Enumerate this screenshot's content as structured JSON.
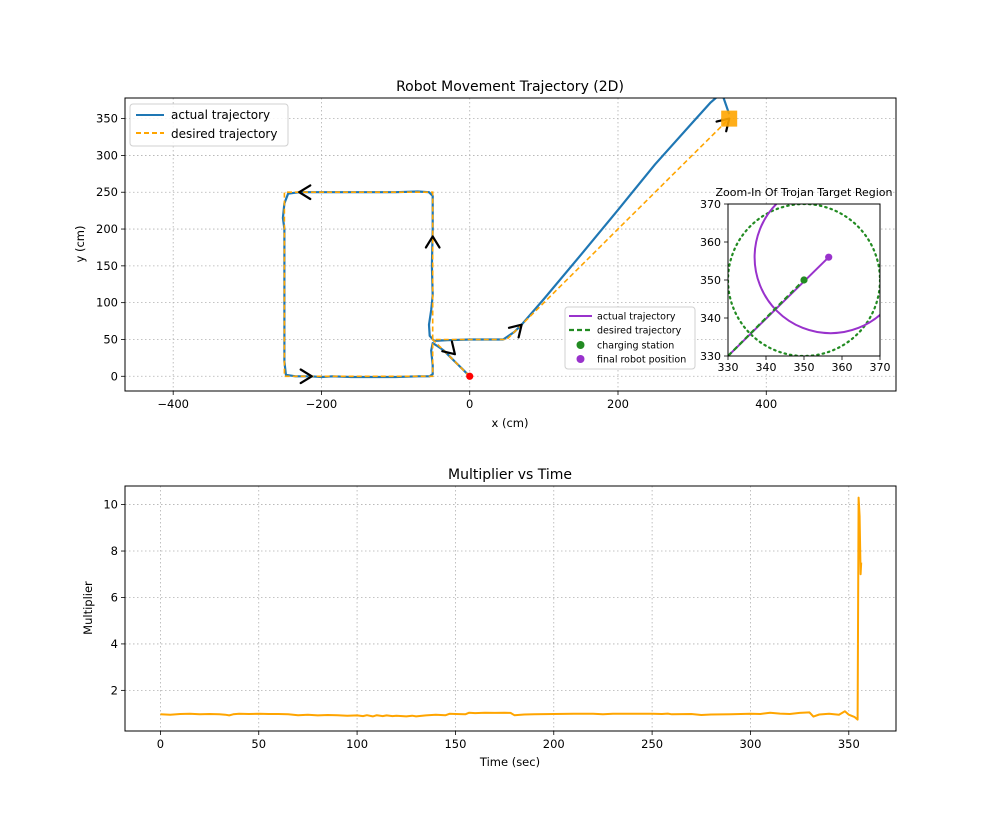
{
  "chart_data": [
    {
      "type": "line",
      "title": "Robot Movement Trajectory (2D)",
      "xlabel": "x (cm)",
      "ylabel": "y (cm)",
      "xlim": [
        -465,
        575
      ],
      "ylim": [
        -20,
        378
      ],
      "xticks": [
        -400,
        -200,
        0,
        200,
        400
      ],
      "yticks": [
        0,
        50,
        100,
        150,
        200,
        250,
        300,
        350
      ],
      "grid": true,
      "legend": {
        "placement": "upper-left",
        "entries": [
          "actual trajectory",
          "desired trajectory"
        ]
      },
      "series": [
        {
          "name": "actual trajectory",
          "color": "#1f77b4",
          "style": "solid",
          "points": [
            [
              0,
              0
            ],
            [
              -10,
              10
            ],
            [
              -20,
              20
            ],
            [
              -28,
              28
            ],
            [
              -35,
              35
            ],
            [
              -45,
              42
            ],
            [
              -50,
              45
            ],
            [
              -52,
              35
            ],
            [
              -50,
              15
            ],
            [
              -50,
              3
            ],
            [
              -54,
              0
            ],
            [
              -70,
              0
            ],
            [
              -100,
              -1
            ],
            [
              -130,
              -1
            ],
            [
              -160,
              -1
            ],
            [
              -185,
              0
            ],
            [
              -200,
              -1
            ],
            [
              -215,
              0
            ],
            [
              -235,
              0
            ],
            [
              -248,
              2
            ],
            [
              -250,
              20
            ],
            [
              -250,
              100
            ],
            [
              -250,
              150
            ],
            [
              -250,
              200
            ],
            [
              -252,
              215
            ],
            [
              -250,
              235
            ],
            [
              -245,
              248
            ],
            [
              -230,
              250
            ],
            [
              -200,
              250
            ],
            [
              -150,
              250
            ],
            [
              -100,
              250
            ],
            [
              -70,
              251
            ],
            [
              -55,
              250
            ],
            [
              -50,
              245
            ],
            [
              -50,
              200
            ],
            [
              -51,
              150
            ],
            [
              -50,
              110
            ],
            [
              -52,
              90
            ],
            [
              -55,
              70
            ],
            [
              -54,
              55
            ],
            [
              -48,
              48
            ],
            [
              -30,
              49
            ],
            [
              0,
              50
            ],
            [
              25,
              50
            ],
            [
              45,
              50
            ],
            [
              60,
              60
            ],
            [
              70,
              70
            ],
            [
              100,
              105
            ],
            [
              150,
              165
            ],
            [
              200,
              226
            ],
            [
              250,
              288
            ],
            [
              300,
              344
            ],
            [
              325,
              372
            ],
            [
              340,
              385
            ],
            [
              350,
              356
            ]
          ]
        },
        {
          "name": "desired trajectory",
          "color": "#ffa500",
          "style": "dashed",
          "points": [
            [
              0,
              0
            ],
            [
              -50,
              50
            ],
            [
              -50,
              0
            ],
            [
              -250,
              0
            ],
            [
              -250,
              250
            ],
            [
              -50,
              250
            ],
            [
              -50,
              50
            ],
            [
              50,
              50
            ],
            [
              350,
              350
            ]
          ]
        }
      ],
      "direction_arrows": [
        [
          -213,
          0,
          1,
          0
        ],
        [
          -230,
          250,
          -1,
          0
        ],
        [
          -50,
          190,
          0,
          1
        ],
        [
          -20,
          30,
          0.7,
          -0.7
        ],
        [
          70,
          70,
          0.7,
          0.7
        ],
        [
          350,
          350,
          0.7,
          0.7
        ]
      ],
      "markers": [
        {
          "label": "start",
          "x": 0,
          "y": 0,
          "color": "#ff0000",
          "shape": "circle"
        },
        {
          "label": "target",
          "x": 350,
          "y": 350,
          "color": "#ffa500",
          "shape": "square"
        }
      ]
    },
    {
      "type": "line",
      "title": "Zoom-In Of Trojan Target Region",
      "xlim": [
        330,
        370
      ],
      "ylim": [
        330,
        370
      ],
      "xticks": [
        330,
        340,
        350,
        360,
        370
      ],
      "yticks": [
        330,
        340,
        350,
        360,
        370
      ],
      "grid": false,
      "legend": {
        "placement": "lower-left",
        "entries": [
          "actual trajectory",
          "desired trajectory",
          "charging station",
          "final robot position"
        ]
      },
      "series": [
        {
          "name": "actual trajectory",
          "color": "#9932cc",
          "style": "solid",
          "circle": {
            "cx": 357,
            "cy": 356,
            "r": 20
          },
          "segment": [
            [
              330,
              330
            ],
            [
              356.5,
              356
            ]
          ]
        },
        {
          "name": "desired trajectory",
          "color": "#228b22",
          "style": "dashed",
          "points": [
            [
              330,
              330
            ],
            [
              350,
              350
            ]
          ]
        }
      ],
      "target_circle": {
        "cx": 350,
        "cy": 350,
        "r": 20,
        "color": "#228b22",
        "style": "dotted"
      },
      "markers": [
        {
          "label": "charging station",
          "x": 350,
          "y": 350,
          "color": "#228b22"
        },
        {
          "label": "final robot position",
          "x": 356.5,
          "y": 356,
          "color": "#9932cc"
        }
      ]
    },
    {
      "type": "line",
      "title": "Multiplier vs Time",
      "xlabel": "Time (sec)",
      "ylabel": "Multiplier",
      "xlim": [
        -18,
        374
      ],
      "ylim": [
        0.25,
        10.8
      ],
      "xticks": [
        0,
        50,
        100,
        150,
        200,
        250,
        300,
        350
      ],
      "yticks": [
        2,
        4,
        6,
        8,
        10
      ],
      "grid": true,
      "series": [
        {
          "name": "multiplier",
          "color": "#ffa500",
          "points": [
            [
              0,
              0.97
            ],
            [
              5,
              0.95
            ],
            [
              10,
              0.98
            ],
            [
              15,
              0.99
            ],
            [
              20,
              0.97
            ],
            [
              25,
              0.98
            ],
            [
              30,
              0.97
            ],
            [
              33,
              0.95
            ],
            [
              35,
              0.92
            ],
            [
              37,
              0.97
            ],
            [
              40,
              0.99
            ],
            [
              45,
              0.98
            ],
            [
              50,
              0.99
            ],
            [
              55,
              0.98
            ],
            [
              60,
              0.98
            ],
            [
              65,
              0.97
            ],
            [
              70,
              0.93
            ],
            [
              75,
              0.95
            ],
            [
              80,
              0.92
            ],
            [
              85,
              0.94
            ],
            [
              90,
              0.93
            ],
            [
              95,
              0.91
            ],
            [
              100,
              0.92
            ],
            [
              103,
              0.89
            ],
            [
              105,
              0.93
            ],
            [
              108,
              0.88
            ],
            [
              110,
              0.93
            ],
            [
              113,
              0.89
            ],
            [
              115,
              0.92
            ],
            [
              118,
              0.89
            ],
            [
              120,
              0.91
            ],
            [
              125,
              0.88
            ],
            [
              128,
              0.91
            ],
            [
              130,
              0.88
            ],
            [
              135,
              0.92
            ],
            [
              140,
              0.95
            ],
            [
              145,
              0.93
            ],
            [
              147,
              0.99
            ],
            [
              150,
              0.98
            ],
            [
              155,
              0.97
            ],
            [
              157,
              1.04
            ],
            [
              160,
              1.02
            ],
            [
              165,
              1.04
            ],
            [
              170,
              1.03
            ],
            [
              175,
              1.04
            ],
            [
              178,
              1.03
            ],
            [
              180,
              0.93
            ],
            [
              185,
              0.96
            ],
            [
              190,
              0.97
            ],
            [
              200,
              0.98
            ],
            [
              210,
              0.99
            ],
            [
              220,
              0.99
            ],
            [
              225,
              0.97
            ],
            [
              230,
              0.99
            ],
            [
              240,
              0.99
            ],
            [
              250,
              0.99
            ],
            [
              255,
              0.98
            ],
            [
              258,
              1.0
            ],
            [
              260,
              0.97
            ],
            [
              270,
              0.98
            ],
            [
              275,
              0.94
            ],
            [
              280,
              0.96
            ],
            [
              290,
              0.97
            ],
            [
              300,
              0.99
            ],
            [
              305,
              0.98
            ],
            [
              310,
              1.04
            ],
            [
              315,
              1.0
            ],
            [
              320,
              0.98
            ],
            [
              325,
              1.03
            ],
            [
              330,
              1.05
            ],
            [
              332,
              0.87
            ],
            [
              335,
              0.96
            ],
            [
              340,
              0.99
            ],
            [
              345,
              0.95
            ],
            [
              348,
              1.1
            ],
            [
              350,
              0.95
            ],
            [
              353,
              0.85
            ],
            [
              354.5,
              0.74
            ],
            [
              355,
              10.3
            ],
            [
              355.5,
              9.5
            ],
            [
              356,
              7.0
            ],
            [
              356.3,
              7.5
            ]
          ]
        }
      ]
    }
  ]
}
